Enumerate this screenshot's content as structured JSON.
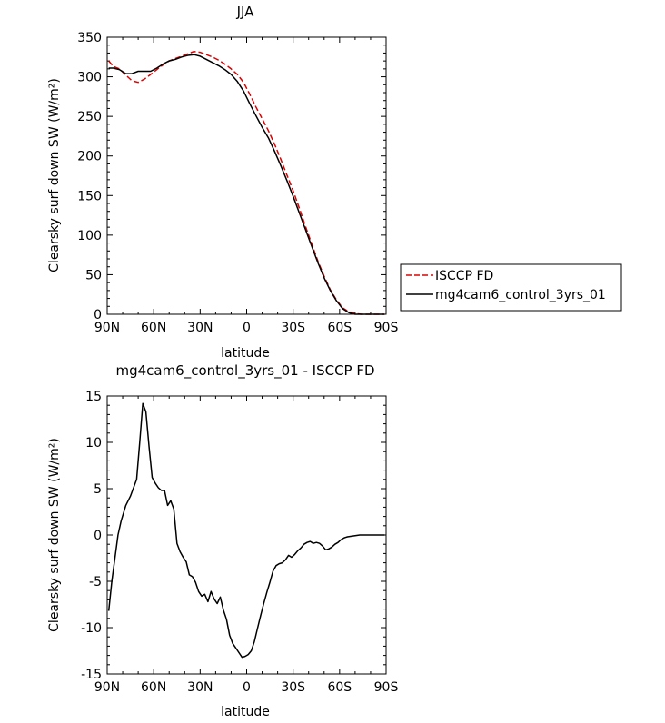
{
  "chart_data": [
    {
      "type": "line",
      "title": "JJA",
      "xlabel": "latitude",
      "ylabel": "Clearsky surf down SW (W/m²)",
      "xticks": [
        "90N",
        "60N",
        "30N",
        "0",
        "30S",
        "60S",
        "90S"
      ],
      "xlim": [
        90,
        -90
      ],
      "ylim": [
        0,
        350
      ],
      "yticks": [
        0,
        50,
        100,
        150,
        200,
        250,
        300,
        350
      ],
      "legend_position": "right",
      "series": [
        {
          "name": "ISCCP FD",
          "color": "#dd0000",
          "dash": "dashed",
          "x": [
            89,
            86,
            82,
            78,
            74,
            70,
            66,
            62,
            58,
            54,
            50,
            46,
            42,
            38,
            34,
            30,
            26,
            22,
            18,
            14,
            10,
            6,
            2,
            -2,
            -6,
            -10,
            -14,
            -18,
            -22,
            -26,
            -30,
            -34,
            -38,
            -42,
            -46,
            -50,
            -54,
            -58,
            -62,
            -66,
            -70,
            -74,
            -78,
            -82,
            -86,
            -89
          ],
          "y": [
            320,
            313,
            310,
            302,
            295,
            293,
            297,
            303,
            309,
            315,
            320,
            323,
            326,
            329,
            332,
            331,
            328,
            325,
            321,
            316,
            310,
            303,
            293,
            278,
            262,
            247,
            232,
            215,
            196,
            176,
            156,
            134,
            111,
            89,
            67,
            48,
            31,
            18,
            8,
            3,
            1,
            0,
            0,
            0,
            0,
            0
          ]
        },
        {
          "name": "mg4cam6_control_3yrs_01",
          "color": "#000000",
          "dash": "solid",
          "x": [
            89,
            86,
            82,
            78,
            74,
            70,
            66,
            62,
            58,
            54,
            50,
            46,
            42,
            38,
            34,
            30,
            26,
            22,
            18,
            14,
            10,
            6,
            2,
            -2,
            -6,
            -10,
            -14,
            -18,
            -22,
            -26,
            -30,
            -34,
            -38,
            -42,
            -46,
            -50,
            -54,
            -58,
            -62,
            -66,
            -70,
            -74,
            -78,
            -82,
            -86,
            -89
          ],
          "y": [
            311,
            311,
            309,
            304,
            304,
            307,
            307,
            307,
            311,
            316,
            320,
            322,
            325,
            327,
            328,
            326,
            322,
            318,
            314,
            309,
            303,
            294,
            282,
            266,
            251,
            236,
            223,
            206,
            188,
            169,
            149,
            128,
            107,
            86,
            65,
            46,
            30,
            17,
            7,
            2,
            0,
            0,
            0,
            0,
            0,
            0
          ]
        }
      ]
    },
    {
      "type": "line",
      "title": "mg4cam6_control_3yrs_01 - ISCCP FD",
      "xlabel": "latitude",
      "ylabel": "Clearsky surf down SW (W/m²)",
      "xticks": [
        "90N",
        "60N",
        "30N",
        "0",
        "30S",
        "60S",
        "90S"
      ],
      "xlim": [
        90,
        -90
      ],
      "ylim": [
        -15,
        15
      ],
      "yticks": [
        -15,
        -10,
        -5,
        0,
        5,
        10,
        15
      ],
      "series": [
        {
          "name": "",
          "color": "#000000",
          "dash": "solid",
          "x": [
            89,
            87,
            85,
            83,
            81,
            78,
            75,
            71,
            69,
            67,
            65,
            63,
            61,
            59,
            57,
            55,
            53,
            51,
            49,
            47,
            45,
            43,
            41,
            39,
            37,
            35,
            33,
            31,
            29,
            27,
            25,
            23,
            21,
            19,
            17,
            15,
            13,
            11,
            9,
            7,
            5,
            3,
            1,
            -1,
            -3,
            -5,
            -7,
            -9,
            -11,
            -13,
            -15,
            -17,
            -19,
            -21,
            -23,
            -25,
            -27,
            -29,
            -31,
            -33,
            -35,
            -37,
            -39,
            -41,
            -43,
            -45,
            -47,
            -49,
            -51,
            -53,
            -55,
            -57,
            -59,
            -61,
            -63,
            -65,
            -67,
            -69,
            -71,
            -73,
            -75,
            -77,
            -79,
            -81,
            -83,
            -85,
            -87,
            -89
          ],
          "y": [
            -8.2,
            -5,
            -2.5,
            0,
            1.5,
            3.2,
            4.2,
            6,
            10,
            14.2,
            13.3,
            9.5,
            6.2,
            5.6,
            5.1,
            4.8,
            4.8,
            3.2,
            3.7,
            2.8,
            -0.9,
            -1.8,
            -2.4,
            -2.9,
            -4.3,
            -4.5,
            -5.1,
            -6.1,
            -6.6,
            -6.4,
            -7.2,
            -6.1,
            -6.9,
            -7.4,
            -6.7,
            -8.1,
            -9.1,
            -10.8,
            -11.7,
            -12.2,
            -12.7,
            -13.2,
            -13.1,
            -12.9,
            -12.5,
            -11.5,
            -10.1,
            -8.7,
            -7.4,
            -6.2,
            -5.1,
            -3.9,
            -3.3,
            -3.1,
            -3.0,
            -2.7,
            -2.2,
            -2.4,
            -2.1,
            -1.7,
            -1.4,
            -1.0,
            -0.8,
            -0.7,
            -0.9,
            -0.8,
            -0.9,
            -1.2,
            -1.6,
            -1.5,
            -1.3,
            -1.0,
            -0.8,
            -0.5,
            -0.3,
            -0.2,
            -0.15,
            -0.1,
            -0.05,
            0,
            0,
            0,
            0,
            0,
            0,
            0,
            0,
            0
          ]
        }
      ]
    }
  ]
}
